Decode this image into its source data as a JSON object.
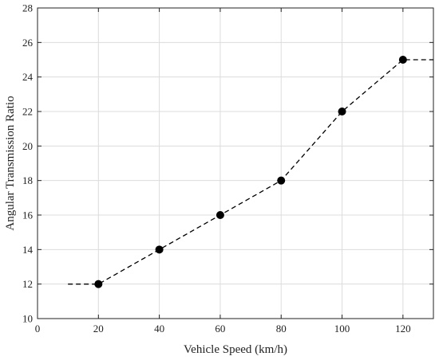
{
  "chart_data": {
    "type": "line",
    "title": "",
    "xlabel": "Vehicle Speed (km/h)",
    "ylabel": "Angular Transmission Ratio",
    "xlim": [
      0,
      130
    ],
    "ylim": [
      10,
      28
    ],
    "xticks": [
      0,
      20,
      40,
      60,
      80,
      100,
      120
    ],
    "yticks": [
      10,
      12,
      14,
      16,
      18,
      20,
      22,
      24,
      26,
      28
    ],
    "grid": true,
    "series": [
      {
        "x": [
          10,
          20,
          40,
          60,
          80,
          100,
          120,
          130
        ],
        "y": [
          12,
          12,
          14,
          16,
          18,
          22,
          25,
          25
        ],
        "markers": [
          false,
          true,
          true,
          true,
          true,
          true,
          true,
          false
        ],
        "line_style": "dashed",
        "color": "#000000"
      }
    ]
  }
}
